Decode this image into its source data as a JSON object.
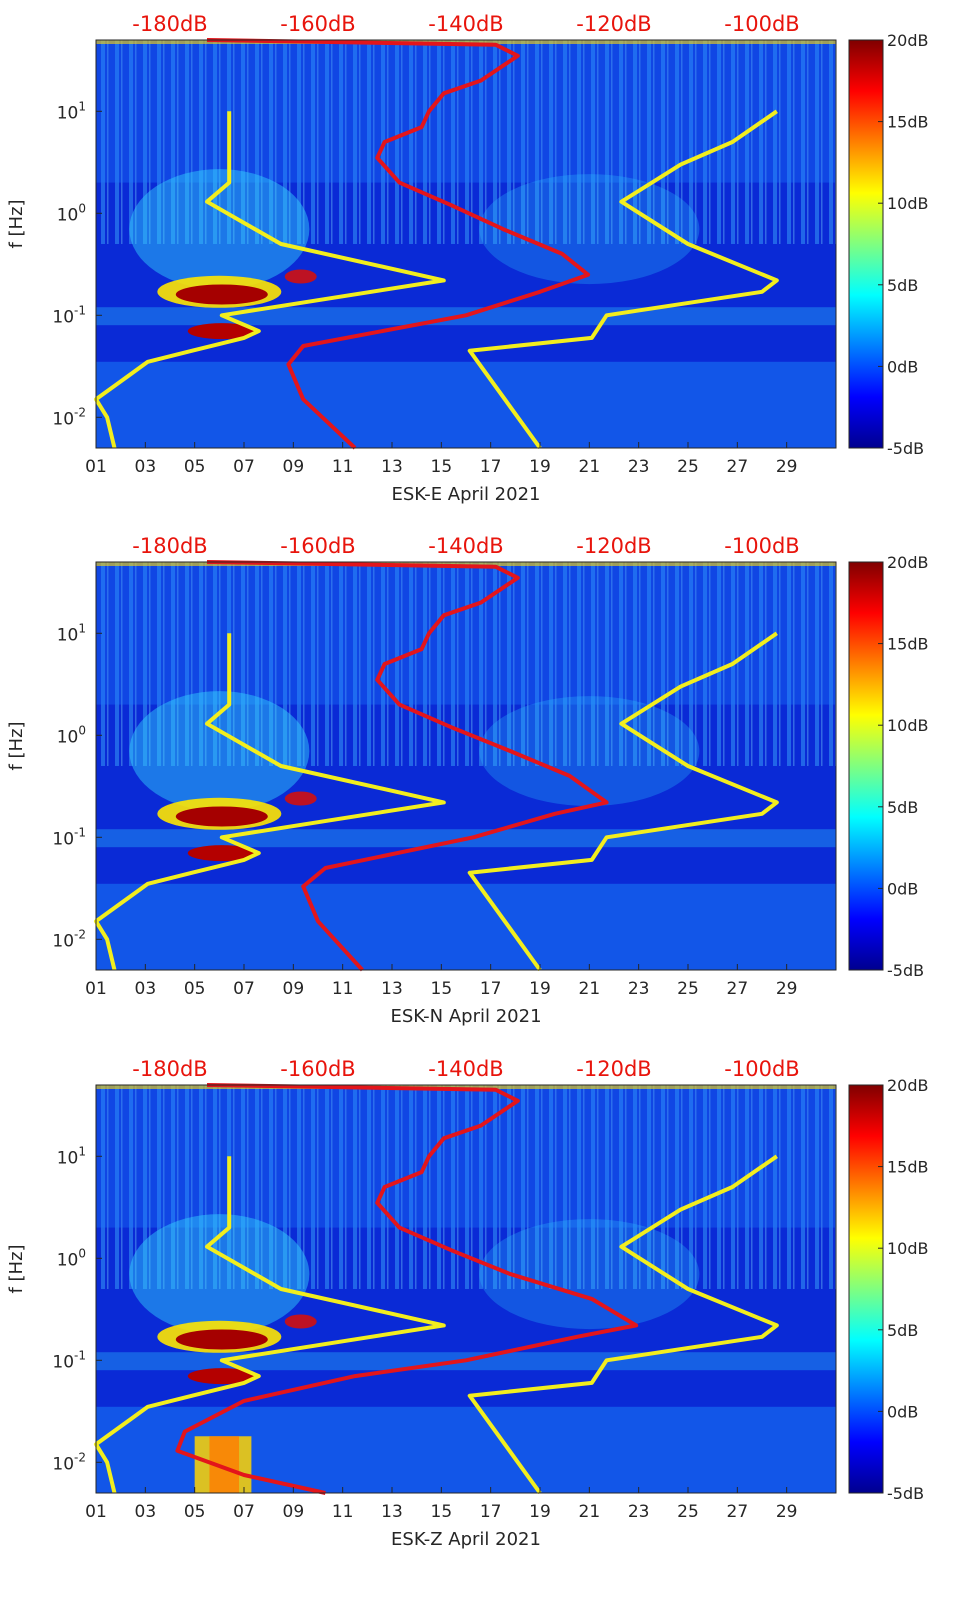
{
  "chart_data": [
    {
      "type": "heatmap",
      "title": "",
      "xlabel": "ESK-E April 2021",
      "ylabel": "f [Hz]",
      "x_ticks": [
        "01",
        "03",
        "05",
        "07",
        "09",
        "11",
        "13",
        "15",
        "17",
        "19",
        "21",
        "23",
        "25",
        "27",
        "29"
      ],
      "x_days_range": [
        1,
        31
      ],
      "y_scale": "log",
      "ylim": [
        0.005,
        50
      ],
      "y_ticks": [
        {
          "base": "10",
          "exp": "-2",
          "value": 0.01
        },
        {
          "base": "10",
          "exp": "-1",
          "value": 0.1
        },
        {
          "base": "10",
          "exp": "0",
          "value": 1
        },
        {
          "base": "10",
          "exp": "1",
          "value": 10
        }
      ],
      "top_axis_ticks": [
        "-180dB",
        "-160dB",
        "-140dB",
        "-120dB",
        "-100dB"
      ],
      "top_axis_range_db": [
        -190,
        -90
      ],
      "colorbar": {
        "ticks": [
          "20dB",
          "15dB",
          "10dB",
          "5dB",
          "0dB",
          "-5dB"
        ],
        "range_db": [
          -5,
          20
        ]
      },
      "series": [
        {
          "name": "noise model low",
          "color": "#f2ee1e",
          "points": [
            [
              0.005,
              -187.5
            ],
            [
              0.01,
              -188.5
            ],
            [
              0.015,
              -190
            ],
            [
              0.035,
              -183
            ],
            [
              0.045,
              -177
            ],
            [
              0.06,
              -170
            ],
            [
              0.07,
              -168
            ],
            [
              0.1,
              -173
            ],
            [
              0.22,
              -143
            ],
            [
              0.5,
              -165
            ],
            [
              1.3,
              -175
            ],
            [
              2,
              -172
            ],
            [
              10,
              -172
            ]
          ]
        },
        {
          "name": "noise model high",
          "color": "#f2ee1e",
          "points": [
            [
              0.005,
              -130
            ],
            [
              0.045,
              -139.5
            ],
            [
              0.06,
              -123
            ],
            [
              0.1,
              -121
            ],
            [
              0.17,
              -100
            ],
            [
              0.22,
              -98
            ],
            [
              0.5,
              -110
            ],
            [
              1.3,
              -119
            ],
            [
              3,
              -111
            ],
            [
              5,
              -104
            ],
            [
              10,
              -98
            ]
          ]
        },
        {
          "name": "station psd",
          "color": "#e3151b",
          "points": [
            [
              0.005,
              -155
            ],
            [
              0.015,
              -162
            ],
            [
              0.033,
              -164
            ],
            [
              0.05,
              -162
            ],
            [
              0.1,
              -140
            ],
            [
              0.17,
              -130
            ],
            [
              0.25,
              -123.5
            ],
            [
              0.4,
              -127
            ],
            [
              0.7,
              -135
            ],
            [
              1.2,
              -142
            ],
            [
              2,
              -149
            ],
            [
              3.5,
              -152
            ],
            [
              5,
              -151
            ],
            [
              7,
              -146
            ],
            [
              10,
              -145
            ],
            [
              15,
              -143
            ],
            [
              20,
              -138
            ],
            [
              35,
              -133
            ],
            [
              45,
              -136
            ],
            [
              50,
              -175
            ]
          ]
        }
      ]
    },
    {
      "type": "heatmap",
      "title": "",
      "xlabel": "ESK-N April 2021",
      "ylabel": "f [Hz]",
      "x_ticks": [
        "01",
        "03",
        "05",
        "07",
        "09",
        "11",
        "13",
        "15",
        "17",
        "19",
        "21",
        "23",
        "25",
        "27",
        "29"
      ],
      "x_days_range": [
        1,
        31
      ],
      "y_scale": "log",
      "ylim": [
        0.005,
        50
      ],
      "y_ticks": [
        {
          "base": "10",
          "exp": "-2",
          "value": 0.01
        },
        {
          "base": "10",
          "exp": "-1",
          "value": 0.1
        },
        {
          "base": "10",
          "exp": "0",
          "value": 1
        },
        {
          "base": "10",
          "exp": "1",
          "value": 10
        }
      ],
      "top_axis_ticks": [
        "-180dB",
        "-160dB",
        "-140dB",
        "-120dB",
        "-100dB"
      ],
      "top_axis_range_db": [
        -190,
        -90
      ],
      "colorbar": {
        "ticks": [
          "20dB",
          "15dB",
          "10dB",
          "5dB",
          "0dB",
          "-5dB"
        ],
        "range_db": [
          -5,
          20
        ]
      },
      "series": [
        {
          "name": "noise model low",
          "color": "#f2ee1e",
          "points": [
            [
              0.005,
              -187.5
            ],
            [
              0.01,
              -188.5
            ],
            [
              0.015,
              -190
            ],
            [
              0.035,
              -183
            ],
            [
              0.045,
              -177
            ],
            [
              0.06,
              -170
            ],
            [
              0.07,
              -168
            ],
            [
              0.1,
              -173
            ],
            [
              0.22,
              -143
            ],
            [
              0.5,
              -165
            ],
            [
              1.3,
              -175
            ],
            [
              2,
              -172
            ],
            [
              10,
              -172
            ]
          ]
        },
        {
          "name": "noise model high",
          "color": "#f2ee1e",
          "points": [
            [
              0.005,
              -130
            ],
            [
              0.045,
              -139.5
            ],
            [
              0.06,
              -123
            ],
            [
              0.1,
              -121
            ],
            [
              0.17,
              -100
            ],
            [
              0.22,
              -98
            ],
            [
              0.5,
              -110
            ],
            [
              1.3,
              -119
            ],
            [
              3,
              -111
            ],
            [
              5,
              -104
            ],
            [
              10,
              -98
            ]
          ]
        },
        {
          "name": "station psd",
          "color": "#e3151b",
          "points": [
            [
              0.005,
              -154
            ],
            [
              0.015,
              -160
            ],
            [
              0.033,
              -162
            ],
            [
              0.05,
              -159
            ],
            [
              0.1,
              -139
            ],
            [
              0.17,
              -128
            ],
            [
              0.22,
              -121
            ],
            [
              0.4,
              -126
            ],
            [
              0.7,
              -134
            ],
            [
              1.2,
              -142
            ],
            [
              2,
              -149
            ],
            [
              3.5,
              -152
            ],
            [
              5,
              -151
            ],
            [
              7,
              -146
            ],
            [
              10,
              -145
            ],
            [
              15,
              -143
            ],
            [
              20,
              -138
            ],
            [
              35,
              -133
            ],
            [
              45,
              -136
            ],
            [
              50,
              -175
            ]
          ]
        }
      ]
    },
    {
      "type": "heatmap",
      "title": "",
      "xlabel": "ESK-Z April 2021",
      "ylabel": "f [Hz]",
      "x_ticks": [
        "01",
        "03",
        "05",
        "07",
        "09",
        "11",
        "13",
        "15",
        "17",
        "19",
        "21",
        "23",
        "25",
        "27",
        "29"
      ],
      "x_days_range": [
        1,
        31
      ],
      "y_scale": "log",
      "ylim": [
        0.005,
        50
      ],
      "y_ticks": [
        {
          "base": "10",
          "exp": "-2",
          "value": 0.01
        },
        {
          "base": "10",
          "exp": "-1",
          "value": 0.1
        },
        {
          "base": "10",
          "exp": "0",
          "value": 1
        },
        {
          "base": "10",
          "exp": "1",
          "value": 10
        }
      ],
      "top_axis_ticks": [
        "-180dB",
        "-160dB",
        "-140dB",
        "-120dB",
        "-100dB"
      ],
      "top_axis_range_db": [
        -190,
        -90
      ],
      "colorbar": {
        "ticks": [
          "20dB",
          "15dB",
          "10dB",
          "5dB",
          "0dB",
          "-5dB"
        ],
        "range_db": [
          -5,
          20
        ]
      },
      "series": [
        {
          "name": "noise model low",
          "color": "#f2ee1e",
          "points": [
            [
              0.005,
              -187.5
            ],
            [
              0.01,
              -188.5
            ],
            [
              0.015,
              -190
            ],
            [
              0.035,
              -183
            ],
            [
              0.045,
              -177
            ],
            [
              0.06,
              -170
            ],
            [
              0.07,
              -168
            ],
            [
              0.1,
              -173
            ],
            [
              0.22,
              -143
            ],
            [
              0.5,
              -165
            ],
            [
              1.3,
              -175
            ],
            [
              2,
              -172
            ],
            [
              10,
              -172
            ]
          ]
        },
        {
          "name": "noise model high",
          "color": "#f2ee1e",
          "points": [
            [
              0.005,
              -130
            ],
            [
              0.045,
              -139.5
            ],
            [
              0.06,
              -123
            ],
            [
              0.1,
              -121
            ],
            [
              0.17,
              -100
            ],
            [
              0.22,
              -98
            ],
            [
              0.5,
              -110
            ],
            [
              1.3,
              -119
            ],
            [
              3,
              -111
            ],
            [
              5,
              -104
            ],
            [
              10,
              -98
            ]
          ]
        },
        {
          "name": "station psd",
          "color": "#e3151b",
          "points": [
            [
              0.005,
              -159
            ],
            [
              0.0075,
              -170
            ],
            [
              0.013,
              -179
            ],
            [
              0.02,
              -178
            ],
            [
              0.04,
              -170
            ],
            [
              0.07,
              -155
            ],
            [
              0.1,
              -140
            ],
            [
              0.17,
              -125
            ],
            [
              0.22,
              -117
            ],
            [
              0.4,
              -123
            ],
            [
              0.7,
              -134
            ],
            [
              1.2,
              -142
            ],
            [
              2,
              -149
            ],
            [
              3.5,
              -152
            ],
            [
              5,
              -151
            ],
            [
              7,
              -146
            ],
            [
              10,
              -145
            ],
            [
              15,
              -143
            ],
            [
              20,
              -138
            ],
            [
              35,
              -133
            ],
            [
              45,
              -136
            ],
            [
              50,
              -175
            ]
          ]
        }
      ]
    }
  ]
}
